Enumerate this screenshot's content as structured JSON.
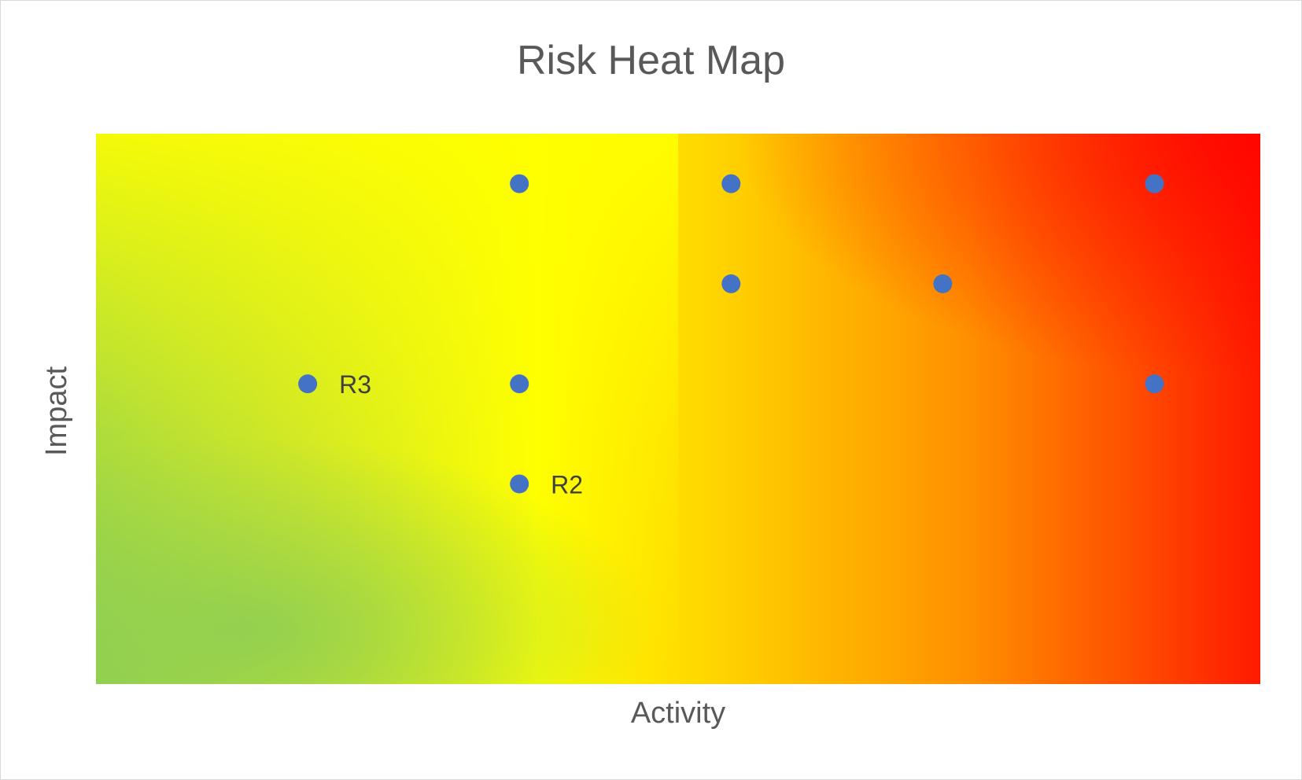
{
  "chart_data": {
    "type": "scatter",
    "title": "Risk Heat Map",
    "xlabel": "Activity",
    "ylabel": "Impact",
    "xlim": [
      0,
      5.5
    ],
    "ylim": [
      0,
      5.5
    ],
    "grid": false,
    "legend": "none",
    "background": "green-yellow-red gradient (low risk bottom-left, high risk top-right)",
    "colors": {
      "marker": "#4472c4",
      "low": "#92d050",
      "mid": "#ffff00",
      "high": "#ff0000"
    },
    "points": [
      {
        "x": 2,
        "y": 5,
        "label": ""
      },
      {
        "x": 3,
        "y": 5,
        "label": ""
      },
      {
        "x": 5,
        "y": 5,
        "label": ""
      },
      {
        "x": 3,
        "y": 4,
        "label": ""
      },
      {
        "x": 4,
        "y": 4,
        "label": ""
      },
      {
        "x": 1,
        "y": 3,
        "label": "R3"
      },
      {
        "x": 2,
        "y": 3,
        "label": ""
      },
      {
        "x": 5,
        "y": 3,
        "label": ""
      },
      {
        "x": 2,
        "y": 2,
        "label": "R2"
      }
    ]
  }
}
